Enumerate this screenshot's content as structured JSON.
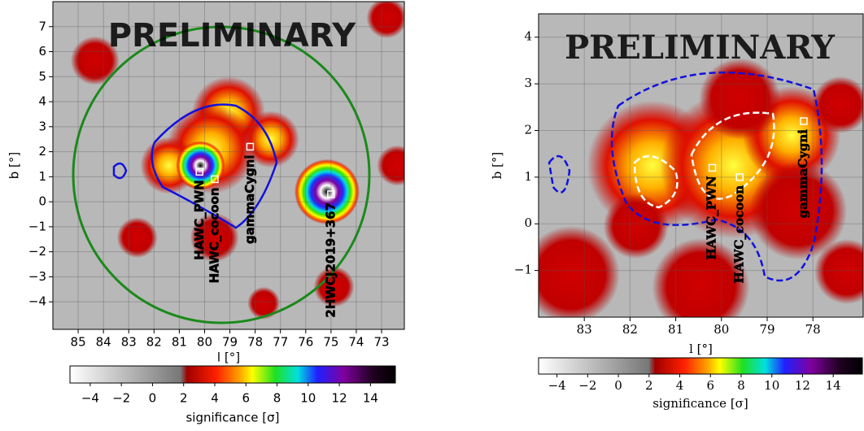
{
  "chart_data": [
    {
      "type": "skymap",
      "annotation": "PRELIMINARY",
      "xlabel": "l [°]",
      "ylabel": "b [°]",
      "xlim": [
        86,
        72.1
      ],
      "ylim": [
        -5.1,
        8
      ],
      "xticks": [
        85,
        84,
        83,
        82,
        81,
        80,
        79,
        78,
        77,
        76,
        75,
        74,
        73
      ],
      "yticks": [
        {
          "value": -4,
          "label": "−4"
        },
        {
          "value": -3,
          "label": "−3"
        },
        {
          "value": -2,
          "label": "−2"
        },
        {
          "value": -1,
          "label": "−1"
        },
        0,
        1,
        2,
        3,
        4,
        5,
        6,
        7
      ],
      "grid": true,
      "sources": [
        {
          "name": "HAWC_PWN",
          "l": 80.2,
          "b": 1.2
        },
        {
          "name": "HAWC_cocoon",
          "l": 79.6,
          "b": 0.9
        },
        {
          "name": "gammaCygni",
          "l": 78.2,
          "b": 2.2
        },
        {
          "name": "2HWCJ2019+367",
          "l": 75.0,
          "b": 0.3
        }
      ],
      "colorbar": {
        "label": "significance [σ]",
        "lim": [
          -5.3,
          15.6
        ],
        "ticks": [
          {
            "value": -4,
            "label": "−4"
          },
          {
            "value": -2,
            "label": "−2"
          },
          0,
          2,
          4,
          6,
          8,
          10,
          12,
          14
        ]
      }
    },
    {
      "type": "skymap",
      "annotation": "PRELIMINARY",
      "xlabel": "l [°]",
      "ylabel": "b [°]",
      "xlim": [
        84,
        76.9
      ],
      "ylim": [
        -2,
        4.5
      ],
      "xticks": [
        83,
        82,
        81,
        80,
        79,
        78
      ],
      "yticks": [
        {
          "value": -1,
          "label": "−1"
        },
        0,
        1,
        2,
        3,
        4
      ],
      "grid": true,
      "sources": [
        {
          "name": "HAWC_PWN",
          "l": 80.2,
          "b": 1.2
        },
        {
          "name": "HAWC_cocoon",
          "l": 79.6,
          "b": 1.0
        },
        {
          "name": "gammaCygni",
          "l": 78.2,
          "b": 2.2
        }
      ],
      "colorbar": {
        "label": "significance [σ]",
        "lim": [
          -5.2,
          15.9
        ],
        "ticks": [
          {
            "value": -4,
            "label": "−4"
          },
          {
            "value": -2,
            "label": "−2"
          },
          0,
          2,
          4,
          6,
          8,
          10,
          12,
          14
        ]
      }
    }
  ]
}
